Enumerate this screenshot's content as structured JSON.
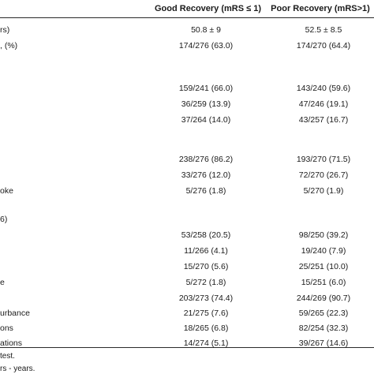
{
  "header": {
    "good_recovery": "Good Recovery (mRS ≤ 1)",
    "poor_recovery": "Poor Recovery (mRS>1)"
  },
  "rows": [
    {
      "label": "rs)",
      "good": "50.8 ± 9",
      "poor": "52.5 ± 8.5"
    },
    {
      "label": ", (%)",
      "good": "174/276 (63.0)",
      "poor": "174/270 (64.4)"
    },
    {
      "label": "",
      "good": "",
      "poor": ""
    },
    {
      "label": "",
      "good": "",
      "poor": ""
    },
    {
      "label": "",
      "good": "159/241 (66.0)",
      "poor": "143/240 (59.6)"
    },
    {
      "label": "",
      "good": "36/259 (13.9)",
      "poor": "47/246 (19.1)"
    },
    {
      "label": "",
      "good": "37/264 (14.0)",
      "poor": "43/257 (16.7)"
    },
    {
      "label": "",
      "good": "",
      "poor": ""
    },
    {
      "label": "",
      "good": "238/276 (86.2)",
      "poor": "193/270 (71.5)"
    },
    {
      "label": "",
      "good": "33/276 (12.0)",
      "poor": "72/270 (26.7)"
    },
    {
      "label": "oke",
      "good": "5/276 (1.8)",
      "poor": "5/270 (1.9)"
    },
    {
      "label": "6)",
      "good": "",
      "poor": ""
    },
    {
      "label": "",
      "good": "53/258 (20.5)",
      "poor": "98/250 (39.2)"
    },
    {
      "label": "",
      "good": "11/266 (4.1)",
      "poor": "19/240 (7.9)"
    },
    {
      "label": "",
      "good": "15/270 (5.6)",
      "poor": "25/251 (10.0)"
    },
    {
      "label": "e",
      "good": "5/272 (1.8)",
      "poor": "15/251 (6.0)"
    },
    {
      "label": "",
      "good": "203/273 (74.4)",
      "poor": "244/269 (90.7)"
    },
    {
      "label": "urbance",
      "good": "21/275 (7.6)",
      "poor": "59/265 (22.3)"
    },
    {
      "label": "ons",
      "good": "18/265 (6.8)",
      "poor": "82/254 (32.3)"
    },
    {
      "label": "ations",
      "good": "14/274 (5.1)",
      "poor": "39/267 (14.6)"
    }
  ],
  "footnotes": [
    "test.",
    "rs - years."
  ]
}
